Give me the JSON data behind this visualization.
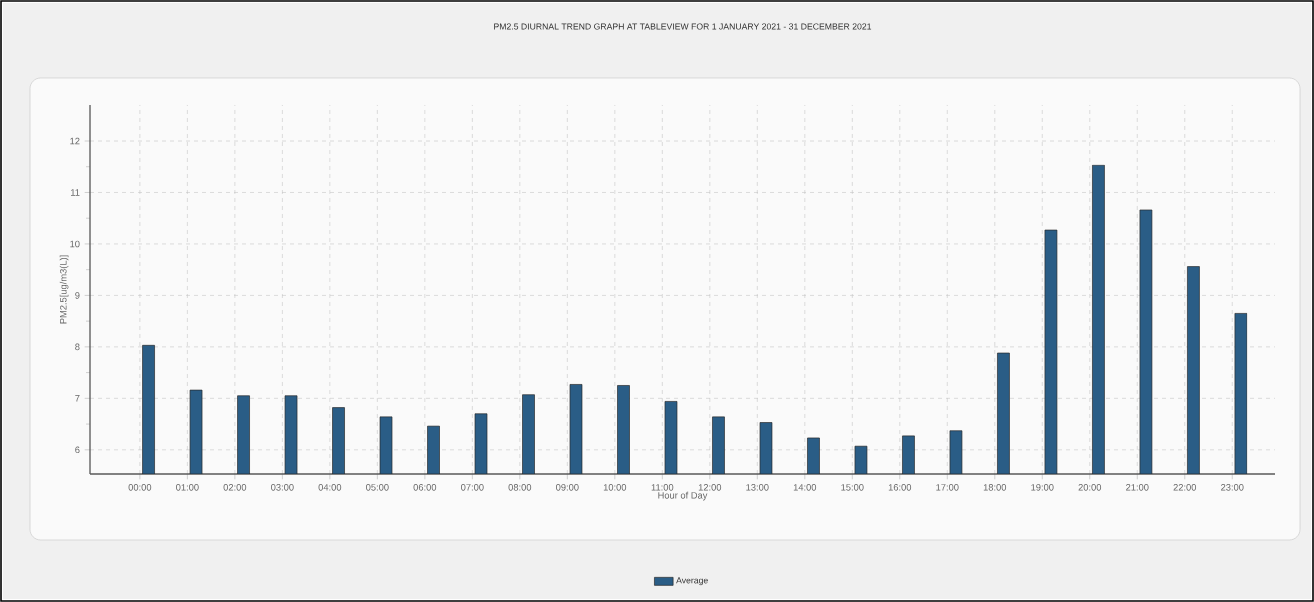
{
  "chart_data": {
    "type": "bar",
    "title": "PM2.5 DIURNAL TREND GRAPH AT TABLEVIEW FOR 1 JANUARY 2021 - 31 DECEMBER 2021",
    "xlabel": "Hour of Day",
    "ylabel": "PM2.5[ug/m3(L)]",
    "categories": [
      "00:00",
      "01:00",
      "02:00",
      "03:00",
      "04:00",
      "05:00",
      "06:00",
      "07:00",
      "08:00",
      "09:00",
      "10:00",
      "11:00",
      "12:00",
      "13:00",
      "14:00",
      "15:00",
      "16:00",
      "17:00",
      "18:00",
      "19:00",
      "20:00",
      "21:00",
      "22:00",
      "23:00"
    ],
    "series": [
      {
        "name": "Average",
        "color": "#2a5d86",
        "values": [
          8.03,
          7.16,
          7.05,
          7.05,
          6.82,
          6.64,
          6.46,
          6.7,
          7.07,
          7.27,
          7.25,
          6.94,
          6.64,
          6.53,
          6.23,
          6.07,
          6.27,
          6.37,
          7.88,
          10.27,
          11.53,
          10.66,
          9.56,
          8.65
        ]
      }
    ],
    "ylim": [
      5.53,
      12.7
    ],
    "yticks": [
      6,
      7,
      8,
      9,
      10,
      11,
      12
    ],
    "grid": true,
    "legend": "bottom"
  }
}
